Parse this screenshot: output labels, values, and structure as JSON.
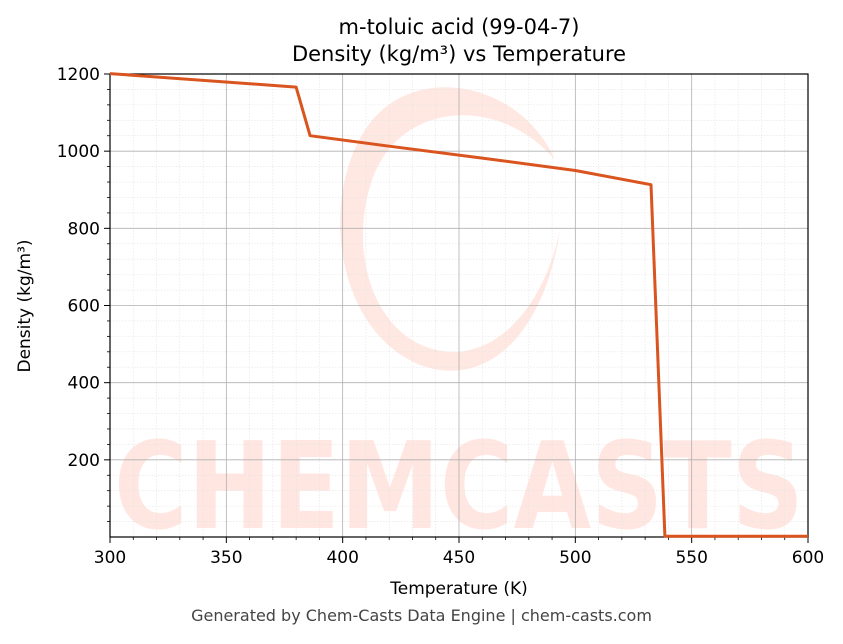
{
  "chart_data": {
    "type": "line",
    "title": "m-toluic acid (99-04-7)",
    "subtitle": "Density (kg/m³) vs Temperature",
    "xlabel": "Temperature (K)",
    "ylabel": "Density (kg/m³)",
    "xlim": [
      300,
      600
    ],
    "ylim": [
      0,
      1200
    ],
    "xticks": [
      300,
      350,
      400,
      450,
      500,
      550,
      600
    ],
    "yticks": [
      200,
      400,
      600,
      800,
      1000,
      1200
    ],
    "grid": true,
    "series": [
      {
        "color": "#d9541e",
        "x": [
          300,
          380,
          386,
          420,
          460,
          500,
          532.5,
          538.5,
          600
        ],
        "y": [
          1201,
          1166,
          1040,
          1013,
          982,
          950,
          913,
          2,
          2
        ]
      }
    ]
  },
  "watermark": "CHEMCASTS",
  "footer": "Generated by Chem-Casts Data Engine | chem-casts.com"
}
